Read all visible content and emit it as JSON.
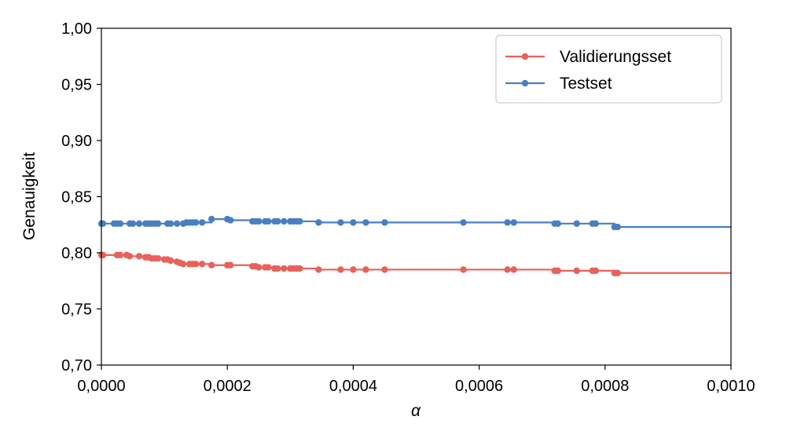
{
  "chart_data": {
    "type": "line",
    "xlabel": "α",
    "ylabel": "Genauigkeit",
    "xlim": [
      0.0,
      0.001
    ],
    "ylim": [
      0.7,
      1.0
    ],
    "x_ticks": [
      "0,0000",
      "0,0002",
      "0,0004",
      "0,0006",
      "0,0008",
      "0,0010"
    ],
    "y_ticks": [
      "0,70",
      "0,75",
      "0,80",
      "0,85",
      "0,90",
      "0,95",
      "1,00"
    ],
    "grid": false,
    "legend_position": "top-right",
    "series": [
      {
        "name": "Validierungsset",
        "color": "#e8615a",
        "x": [
          0.0,
          2.5e-06,
          2.5e-05,
          3e-05,
          4e-05,
          4.5e-05,
          6e-05,
          7e-05,
          7.5e-05,
          8e-05,
          8.5e-05,
          9e-05,
          0.0001,
          0.000105,
          0.00011,
          0.00012,
          0.000125,
          0.00013,
          0.00014,
          0.000145,
          0.00015,
          0.00016,
          0.000175,
          0.0002,
          0.000205,
          0.00024,
          0.000245,
          0.00025,
          0.00026,
          0.000265,
          0.000275,
          0.00028,
          0.00029,
          0.0003,
          0.000305,
          0.00031,
          0.000315,
          0.000345,
          0.00038,
          0.0004,
          0.00042,
          0.00045,
          0.000575,
          0.000645,
          0.000655,
          0.00072,
          0.000725,
          0.000755,
          0.00078,
          0.000785,
          0.000815,
          0.00082,
          0.001
        ],
        "values": [
          0.798,
          0.798,
          0.798,
          0.798,
          0.798,
          0.797,
          0.797,
          0.796,
          0.796,
          0.795,
          0.795,
          0.795,
          0.794,
          0.794,
          0.793,
          0.792,
          0.791,
          0.79,
          0.79,
          0.79,
          0.79,
          0.79,
          0.789,
          0.789,
          0.789,
          0.788,
          0.788,
          0.787,
          0.787,
          0.787,
          0.786,
          0.786,
          0.786,
          0.786,
          0.786,
          0.786,
          0.786,
          0.785,
          0.785,
          0.785,
          0.785,
          0.785,
          0.785,
          0.785,
          0.785,
          0.784,
          0.784,
          0.784,
          0.784,
          0.784,
          0.782,
          0.782,
          0.782
        ]
      },
      {
        "name": "Testset",
        "color": "#4a7ec2",
        "x": [
          0.0,
          2.5e-06,
          2e-05,
          2.5e-05,
          3e-05,
          4.5e-05,
          5e-05,
          6e-05,
          7e-05,
          7.5e-05,
          8e-05,
          8.5e-05,
          9e-05,
          0.000105,
          0.00011,
          0.00012,
          0.00013,
          0.000135,
          0.00014,
          0.000145,
          0.00015,
          0.00016,
          0.000175,
          0.0002,
          0.000205,
          0.00024,
          0.000245,
          0.00025,
          0.00026,
          0.000265,
          0.000275,
          0.00028,
          0.00029,
          0.0003,
          0.000305,
          0.00031,
          0.000315,
          0.000345,
          0.00038,
          0.0004,
          0.00042,
          0.00045,
          0.000575,
          0.000645,
          0.000655,
          0.00072,
          0.000725,
          0.000755,
          0.00078,
          0.000785,
          0.000815,
          0.00082,
          0.001
        ],
        "values": [
          0.826,
          0.826,
          0.826,
          0.826,
          0.826,
          0.826,
          0.826,
          0.826,
          0.826,
          0.826,
          0.826,
          0.826,
          0.826,
          0.826,
          0.826,
          0.826,
          0.826,
          0.827,
          0.827,
          0.827,
          0.827,
          0.827,
          0.83,
          0.83,
          0.829,
          0.828,
          0.828,
          0.828,
          0.828,
          0.828,
          0.828,
          0.828,
          0.828,
          0.828,
          0.828,
          0.828,
          0.828,
          0.827,
          0.827,
          0.827,
          0.827,
          0.827,
          0.827,
          0.827,
          0.827,
          0.826,
          0.826,
          0.826,
          0.826,
          0.826,
          0.823,
          0.823,
          0.823
        ]
      }
    ]
  }
}
